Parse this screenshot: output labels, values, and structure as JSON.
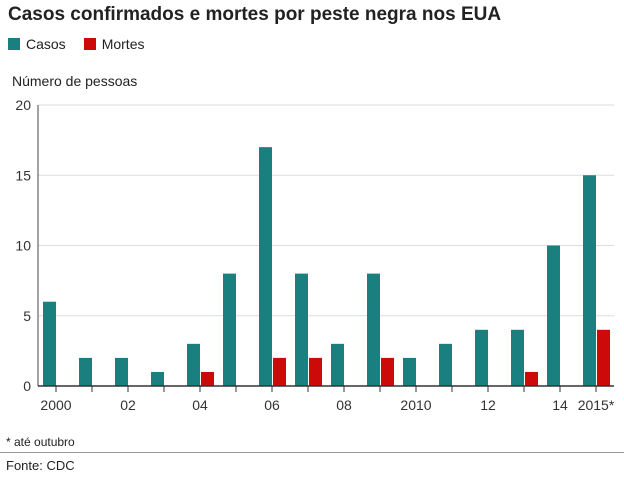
{
  "chart_data": {
    "type": "bar",
    "title": "Casos confirmados e mortes por peste negra nos EUA",
    "ylabel": "Número de pessoas",
    "xlabel": "",
    "ylim": [
      0,
      20
    ],
    "yticks": [
      0,
      5,
      10,
      15,
      20
    ],
    "categories": [
      "2000",
      "2001",
      "2002",
      "2003",
      "2004",
      "2005",
      "2006",
      "2007",
      "2008",
      "2009",
      "2010",
      "2011",
      "2012",
      "2013",
      "2014",
      "2015"
    ],
    "xtick_labels": [
      {
        "category": "2000",
        "label": "2000"
      },
      {
        "category": "2002",
        "label": "02"
      },
      {
        "category": "2004",
        "label": "04"
      },
      {
        "category": "2006",
        "label": "06"
      },
      {
        "category": "2008",
        "label": "08"
      },
      {
        "category": "2010",
        "label": "2010"
      },
      {
        "category": "2012",
        "label": "12"
      },
      {
        "category": "2014",
        "label": "14"
      },
      {
        "category": "2015",
        "label": "2015*"
      }
    ],
    "series": [
      {
        "name": "Casos",
        "color": "#1a7f7f",
        "values": [
          6,
          2,
          2,
          1,
          3,
          8,
          17,
          8,
          3,
          8,
          2,
          3,
          4,
          4,
          10,
          15
        ]
      },
      {
        "name": "Mortes",
        "color": "#cc0a0a",
        "values": [
          0,
          0,
          0,
          0,
          1,
          0,
          2,
          2,
          0,
          2,
          0,
          0,
          0,
          1,
          0,
          4
        ]
      }
    ],
    "legend": "top-left",
    "footnote": "* até outubro",
    "source": "Fonte: CDC"
  }
}
